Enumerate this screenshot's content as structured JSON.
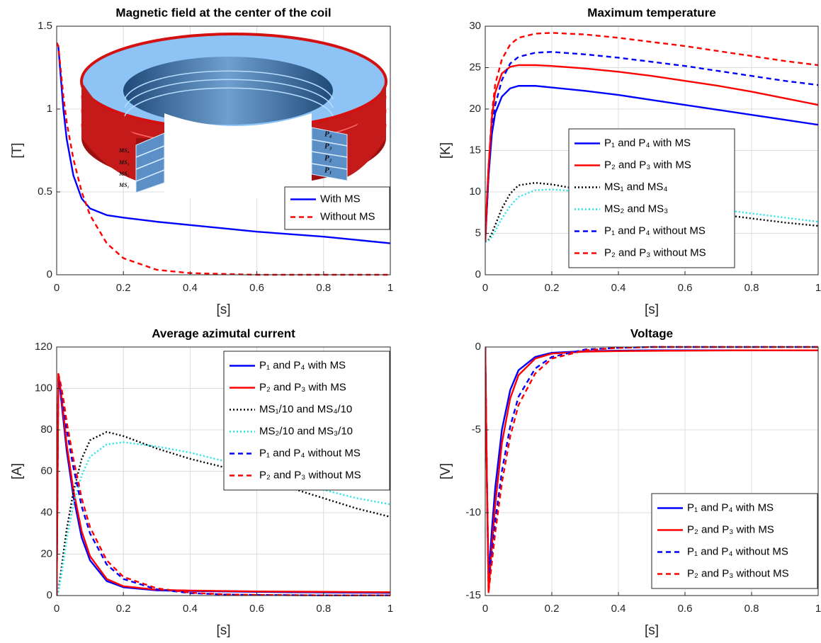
{
  "chart_data": [
    {
      "type": "line",
      "title": "Magnetic field at the center of the coil",
      "xlabel": "[s]",
      "ylabel": "[T]",
      "xlim": [
        0,
        1
      ],
      "xticks": [
        0,
        0.2,
        0.4,
        0.6,
        0.8,
        1
      ],
      "ylim": [
        0,
        1.5
      ],
      "yticks": [
        0,
        0.5,
        1,
        1.5
      ],
      "grid": true,
      "legend": "lower right",
      "inset_labels": [
        "P₄",
        "P₃",
        "P₂",
        "P₁"
      ],
      "inset_ms_labels": [
        "MS₄",
        "MS₃",
        "MS₂",
        "MS₁"
      ],
      "x": [
        0,
        0.005,
        0.01,
        0.02,
        0.03,
        0.05,
        0.075,
        0.1,
        0.15,
        0.2,
        0.3,
        0.4,
        0.5,
        0.6,
        0.7,
        0.8,
        0.9,
        1
      ],
      "series": [
        {
          "name": "With MS",
          "color": "#0000ff",
          "style": "solid",
          "values": [
            1.4,
            1.38,
            1.25,
            1.0,
            0.82,
            0.6,
            0.46,
            0.4,
            0.36,
            0.345,
            0.32,
            0.3,
            0.28,
            0.26,
            0.245,
            0.23,
            0.21,
            0.19
          ]
        },
        {
          "name": "Without MS",
          "color": "#ff0000",
          "style": "dashed",
          "values": [
            1.4,
            1.38,
            1.28,
            1.08,
            0.92,
            0.7,
            0.5,
            0.36,
            0.19,
            0.1,
            0.03,
            0.01,
            0.005,
            0,
            0,
            0,
            0,
            0
          ]
        }
      ]
    },
    {
      "type": "line",
      "title": "Maximum temperature",
      "xlabel": "[s]",
      "ylabel": "[K]",
      "xlim": [
        0,
        1
      ],
      "xticks": [
        0,
        0.2,
        0.4,
        0.6,
        0.8,
        1
      ],
      "ylim": [
        0,
        30
      ],
      "yticks": [
        0,
        5,
        10,
        15,
        20,
        25,
        30
      ],
      "grid": true,
      "legend": "lower center",
      "x": [
        0,
        0.005,
        0.01,
        0.02,
        0.03,
        0.05,
        0.075,
        0.1,
        0.15,
        0.2,
        0.3,
        0.4,
        0.5,
        0.6,
        0.7,
        0.8,
        0.9,
        1
      ],
      "series": [
        {
          "name": "P₁ and P₄ with MS",
          "color": "#0000ff",
          "style": "solid",
          "values": [
            4,
            8,
            12,
            17,
            19.5,
            21.5,
            22.5,
            22.8,
            22.8,
            22.6,
            22.2,
            21.7,
            21.1,
            20.5,
            19.9,
            19.3,
            18.7,
            18.1
          ]
        },
        {
          "name": "P₂ and P₃ with MS",
          "color": "#ff0000",
          "style": "solid",
          "values": [
            4,
            9,
            13,
            19,
            22,
            24.3,
            25.1,
            25.3,
            25.3,
            25.2,
            24.9,
            24.5,
            24,
            23.4,
            22.8,
            22.1,
            21.3,
            20.5
          ]
        },
        {
          "name": "MS₁ and MS₄",
          "color": "#000000",
          "style": "dotted",
          "values": [
            4,
            4,
            4.2,
            5,
            6,
            8,
            9.8,
            10.8,
            11.1,
            10.9,
            10.2,
            9.4,
            8.6,
            7.9,
            7.3,
            6.8,
            6.3,
            5.9
          ]
        },
        {
          "name": "MS₂ and MS₃",
          "color": "#22e6e6",
          "style": "dotted",
          "values": [
            4,
            4,
            4.1,
            4.6,
            5.3,
            6.8,
            8.3,
            9.4,
            10.2,
            10.3,
            10,
            9.5,
            8.9,
            8.4,
            7.9,
            7.4,
            6.9,
            6.4
          ]
        },
        {
          "name": "P₁ and P₄ without MS",
          "color": "#0000ff",
          "style": "dashed",
          "values": [
            4,
            8,
            12,
            17.5,
            20.5,
            23.5,
            25.5,
            26.3,
            26.8,
            26.9,
            26.6,
            26.2,
            25.7,
            25.2,
            24.6,
            24,
            23.4,
            22.9
          ]
        },
        {
          "name": "P₂ and P₃ without MS",
          "color": "#ff0000",
          "style": "dashed",
          "values": [
            4,
            9,
            13,
            19.5,
            23,
            26,
            27.8,
            28.6,
            29.1,
            29.2,
            29,
            28.6,
            28.1,
            27.6,
            27,
            26.4,
            25.8,
            25.3
          ]
        }
      ]
    },
    {
      "type": "line",
      "title": "Average azimutal current",
      "xlabel": "[s]",
      "ylabel": "[A]",
      "xlim": [
        0,
        1
      ],
      "xticks": [
        0,
        0.2,
        0.4,
        0.6,
        0.8,
        1
      ],
      "ylim": [
        0,
        120
      ],
      "yticks": [
        0,
        20,
        40,
        60,
        80,
        100,
        120
      ],
      "grid": true,
      "legend": "upper right",
      "x": [
        0,
        0.005,
        0.01,
        0.02,
        0.03,
        0.05,
        0.075,
        0.1,
        0.15,
        0.2,
        0.3,
        0.4,
        0.5,
        0.6,
        0.7,
        0.8,
        0.9,
        1
      ],
      "series": [
        {
          "name": "P₁ and P₄ with MS",
          "color": "#0000ff",
          "style": "solid",
          "values": [
            0,
            105,
            100,
            85,
            70,
            48,
            28,
            17,
            7,
            4,
            2.5,
            2.2,
            2,
            1.8,
            1.6,
            1.5,
            1.4,
            1.3
          ]
        },
        {
          "name": "P₂ and P₃ with MS",
          "color": "#ff0000",
          "style": "solid",
          "values": [
            0,
            107,
            102,
            88,
            73,
            51,
            31,
            19,
            8,
            4.5,
            2.8,
            2.4,
            2.2,
            2,
            1.9,
            1.8,
            1.7,
            1.6
          ]
        },
        {
          "name": "MS₁/10 and MS₄/10",
          "color": "#000000",
          "style": "dotted",
          "values": [
            0,
            2,
            8,
            20,
            32,
            50,
            66,
            75,
            79,
            77,
            71,
            66,
            62,
            57,
            52,
            47,
            42,
            38
          ]
        },
        {
          "name": "MS₂/10 and MS₃/10",
          "color": "#22e6e6",
          "style": "dotted",
          "values": [
            0,
            2,
            6,
            16,
            27,
            44,
            58,
            67,
            73,
            74,
            72,
            69,
            65,
            60,
            55,
            51,
            47,
            44
          ]
        },
        {
          "name": "P₁ and P₄ without MS",
          "color": "#0000ff",
          "style": "dashed",
          "values": [
            0,
            105,
            102,
            92,
            80,
            62,
            43,
            30,
            15,
            8,
            3,
            1.2,
            0.5,
            0.3,
            0.2,
            0.1,
            0.1,
            0.1
          ]
        },
        {
          "name": "P₂ and P₃ without MS",
          "color": "#ff0000",
          "style": "dashed",
          "values": [
            0,
            107,
            104,
            95,
            84,
            66,
            47,
            33,
            17,
            9,
            3.5,
            1.4,
            0.6,
            0.3,
            0.2,
            0.1,
            0.1,
            0.1
          ]
        }
      ]
    },
    {
      "type": "line",
      "title": "Voltage",
      "xlabel": "[s]",
      "ylabel": "[V]",
      "xlim": [
        0,
        1
      ],
      "xticks": [
        0,
        0.2,
        0.4,
        0.6,
        0.8,
        1
      ],
      "ylim": [
        -15,
        0
      ],
      "yticks": [
        -15,
        -10,
        -5,
        0
      ],
      "grid": true,
      "legend": "lower right",
      "x": [
        0,
        0.005,
        0.01,
        0.02,
        0.03,
        0.05,
        0.075,
        0.1,
        0.15,
        0.2,
        0.3,
        0.4,
        0.5,
        0.6,
        0.7,
        0.8,
        0.9,
        1
      ],
      "series": [
        {
          "name": "P₁ and P₄ with MS",
          "color": "#0000ff",
          "style": "solid",
          "values": [
            0,
            -8,
            -14,
            -11,
            -8.5,
            -5,
            -2.6,
            -1.4,
            -0.6,
            -0.35,
            -0.25,
            -0.22,
            -0.2,
            -0.2,
            -0.2,
            -0.2,
            -0.2,
            -0.2
          ]
        },
        {
          "name": "P₂ and P₃ with MS",
          "color": "#ff0000",
          "style": "solid",
          "values": [
            0,
            -8,
            -14.8,
            -12,
            -9.5,
            -5.8,
            -3.1,
            -1.7,
            -0.7,
            -0.4,
            -0.28,
            -0.25,
            -0.23,
            -0.22,
            -0.21,
            -0.2,
            -0.2,
            -0.2
          ]
        },
        {
          "name": "P₁ and P₄ without MS",
          "color": "#0000ff",
          "style": "dashed",
          "values": [
            0,
            -8,
            -14,
            -12.5,
            -10.5,
            -7.5,
            -4.8,
            -3,
            -1.3,
            -0.6,
            -0.15,
            -0.05,
            0,
            0,
            0,
            0,
            0,
            0
          ]
        },
        {
          "name": "P₂ and P₃ without MS",
          "color": "#ff0000",
          "style": "dashed",
          "values": [
            0,
            -8,
            -14.8,
            -13,
            -11.2,
            -8.2,
            -5.4,
            -3.5,
            -1.6,
            -0.7,
            -0.2,
            -0.05,
            0,
            0,
            0,
            0,
            0,
            0
          ]
        }
      ]
    }
  ]
}
